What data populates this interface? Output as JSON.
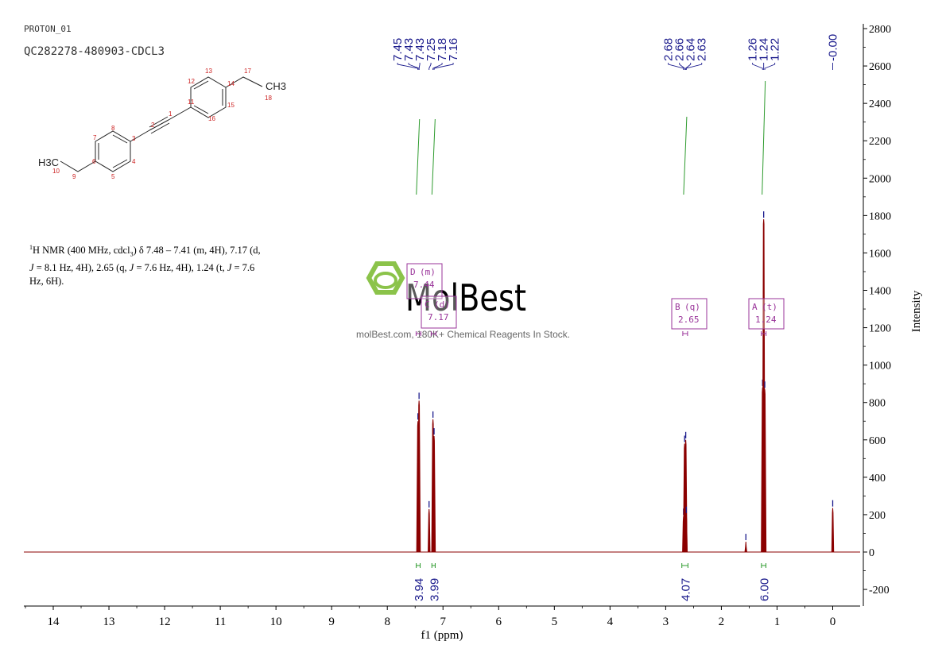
{
  "header": {
    "proton_label": "PROTON_01",
    "sample_id": "QC282278-480903-CDCL3"
  },
  "description": {
    "nucleus_sup": "1",
    "text_1": "H NMR (400 MHz, cdcl",
    "sub_3": "3",
    "text_2": ") δ 7.48 – 7.41 (m, 4H), 7.17 (d,",
    "j1": "J",
    "text_3": " = 8.1 Hz, 4H), 2.65 (q, ",
    "j2": "J",
    "text_4": " = 7.6 Hz, 4H), 1.24 (t, ",
    "j3": "J",
    "text_5": " = 7.6",
    "text_6": "Hz, 6H)."
  },
  "watermark": {
    "brand": "MolBest",
    "tagline": "molBest.com, 180K+ Chemical Reagents In Stock."
  },
  "structure": {
    "atom_labels": [
      "1",
      "2",
      "3",
      "4",
      "5",
      "6",
      "7",
      "8",
      "9",
      "10",
      "11",
      "12",
      "13",
      "14",
      "15",
      "16",
      "17",
      "18"
    ],
    "ch3_right": "CH3",
    "ch3_left": "H3C"
  },
  "chart_data": {
    "type": "line",
    "xlabel": "f1 (ppm)",
    "ylabel": "Intensity",
    "xlim": [
      14.6,
      -0.5
    ],
    "ylim": [
      -280,
      2800
    ],
    "x_ticks": [
      14,
      13,
      12,
      11,
      10,
      9,
      8,
      7,
      6,
      5,
      4,
      3,
      2,
      1,
      0
    ],
    "y_ticks": [
      -200,
      0,
      200,
      400,
      600,
      800,
      1000,
      1200,
      1400,
      1600,
      1800,
      2000,
      2200,
      2400,
      2600,
      2800
    ],
    "line_color": "#8b0000",
    "peaks": [
      {
        "ppm": 7.45,
        "height": 700
      },
      {
        "ppm": 7.43,
        "height": 810
      },
      {
        "ppm": 7.25,
        "height": 230
      },
      {
        "ppm": 7.18,
        "height": 710
      },
      {
        "ppm": 7.16,
        "height": 620
      },
      {
        "ppm": 2.68,
        "height": 190
      },
      {
        "ppm": 2.66,
        "height": 580
      },
      {
        "ppm": 2.64,
        "height": 600
      },
      {
        "ppm": 2.63,
        "height": 200
      },
      {
        "ppm": 1.56,
        "height": 55
      },
      {
        "ppm": 1.26,
        "height": 880
      },
      {
        "ppm": 1.24,
        "height": 1780
      },
      {
        "ppm": 1.22,
        "height": 870
      },
      {
        "ppm": 0.0,
        "height": 235
      }
    ],
    "peak_label_groups": [
      {
        "labels": [
          "7.45",
          "7.43",
          "7.43",
          "7.25",
          "7.18",
          "7.16"
        ],
        "ppm": [
          7.45,
          7.43,
          7.43,
          7.25,
          7.18,
          7.16
        ]
      },
      {
        "labels": [
          "2.68",
          "2.66",
          "2.64",
          "2.63"
        ],
        "ppm": [
          2.68,
          2.66,
          2.64,
          2.63
        ]
      },
      {
        "labels": [
          "1.26",
          "1.24",
          "1.22"
        ],
        "ppm": [
          1.26,
          1.24,
          1.22
        ]
      },
      {
        "labels": [
          "-0.00"
        ],
        "ppm": [
          0.0
        ]
      }
    ],
    "multiplets": [
      {
        "letter": "D",
        "type": "(m)",
        "shift": "7.44",
        "ppm": 7.44
      },
      {
        "letter": "C",
        "type": "(d)",
        "shift": "7.17",
        "ppm": 7.17
      },
      {
        "letter": "B",
        "type": "(q)",
        "shift": "2.65",
        "ppm": 2.65
      },
      {
        "letter": "A",
        "type": "(t)",
        "shift": "1.24",
        "ppm": 1.24
      }
    ],
    "integrals": [
      {
        "ppm_from": 7.48,
        "ppm_to": 7.41,
        "value": "3.94"
      },
      {
        "ppm_from": 7.2,
        "ppm_to": 7.14,
        "value": "3.99"
      },
      {
        "ppm_from": 2.71,
        "ppm_to": 2.6,
        "value": "4.07"
      },
      {
        "ppm_from": 1.28,
        "ppm_to": 1.2,
        "value": "6.00"
      }
    ],
    "colors": {
      "spectrum": "#8b0000",
      "labels": "#1a1a8c",
      "integral_curve": "#2e9b2e",
      "multiplet_box": "#993399"
    }
  }
}
